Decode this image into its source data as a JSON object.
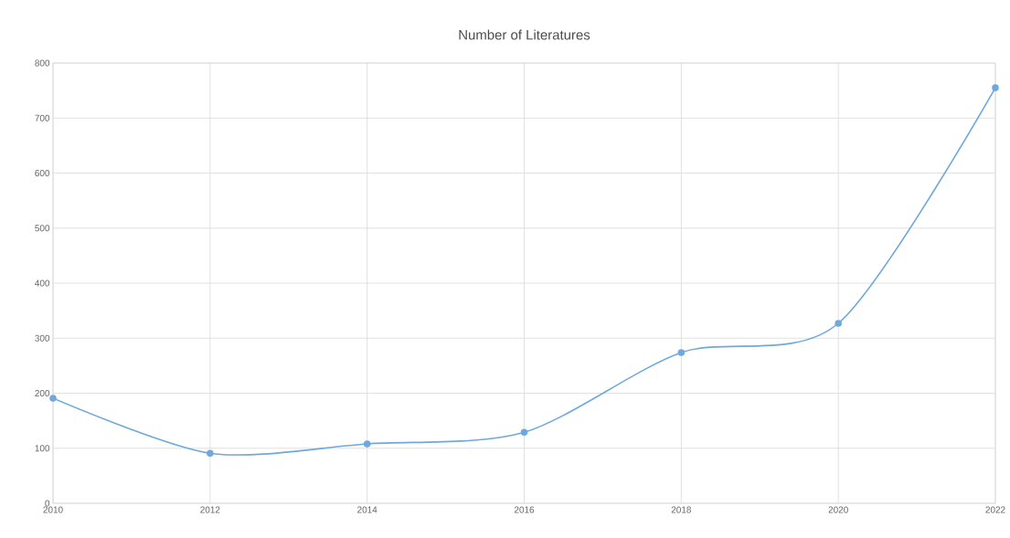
{
  "chart_data": {
    "type": "line",
    "title": "Number of Literatures",
    "x": [
      2010,
      2012,
      2014,
      2016,
      2018,
      2020,
      2022
    ],
    "series": [
      {
        "color": "#6fa8dc",
        "values": [
          191,
          91,
          108,
          129,
          274,
          327,
          755
        ]
      }
    ],
    "xlim": [
      2010,
      2022
    ],
    "xticks": [
      2010,
      2012,
      2014,
      2016,
      2018,
      2020,
      2022
    ],
    "ylim": [
      0,
      800
    ],
    "yticks": [
      0,
      100,
      200,
      300,
      400,
      500,
      600,
      700,
      800
    ],
    "grid": true,
    "marker": "circle",
    "line_style": "solid"
  }
}
